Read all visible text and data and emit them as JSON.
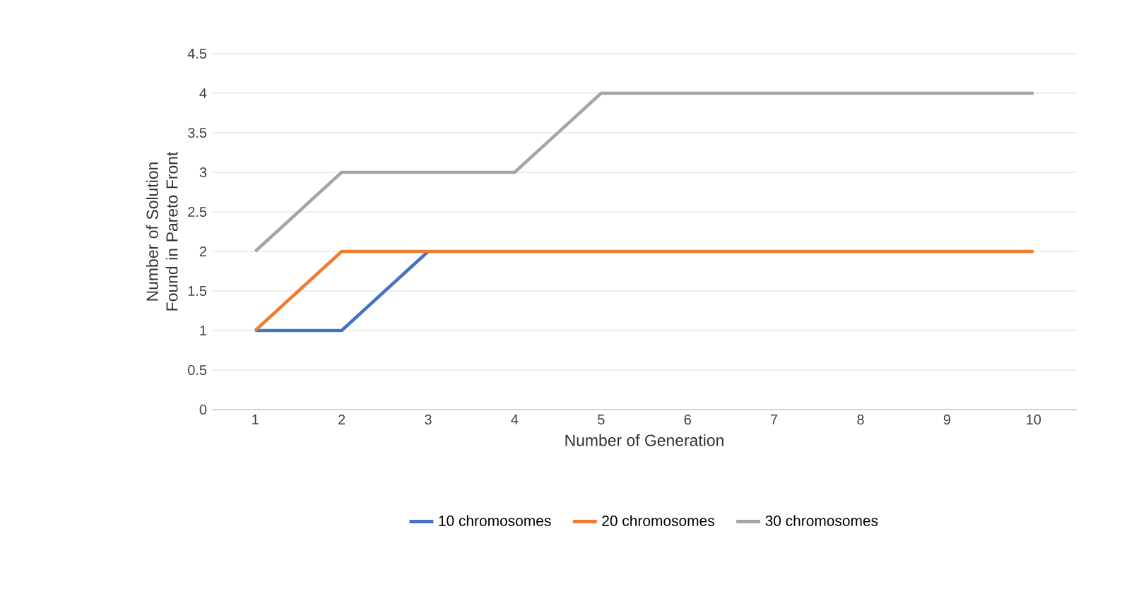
{
  "chart_data": {
    "type": "line",
    "xlabel": "Number of Generation",
    "ylabel": "Number of Solution Found in Pareto Front",
    "categories": [
      "1",
      "2",
      "3",
      "4",
      "5",
      "6",
      "7",
      "8",
      "9",
      "10"
    ],
    "series": [
      {
        "name": "10 chromosomes",
        "color": "#4472c4",
        "values": [
          1,
          1,
          2,
          null,
          null,
          null,
          null,
          null,
          null,
          null
        ]
      },
      {
        "name": "20 chromosomes",
        "color": "#ed7d31",
        "values": [
          1,
          2,
          2,
          2,
          2,
          2,
          2,
          2,
          2,
          2
        ]
      },
      {
        "name": "30 chromosomes",
        "color": "#a5a5a5",
        "values": [
          2,
          3,
          3,
          3,
          4,
          4,
          4,
          4,
          4,
          4
        ]
      }
    ],
    "ylim": [
      0,
      4.5
    ],
    "yticks": [
      0,
      0.5,
      1,
      1.5,
      2,
      2.5,
      3,
      3.5,
      4,
      4.5
    ],
    "grid": "y",
    "legend": "bottom"
  }
}
